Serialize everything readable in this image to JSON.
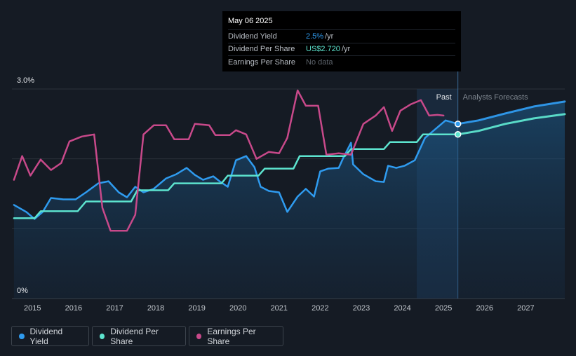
{
  "tooltip": {
    "date": "May 06 2025",
    "rows": [
      {
        "label": "Dividend Yield",
        "value": "2.5%",
        "unit": "/yr"
      },
      {
        "label": "Dividend Per Share",
        "value": "US$2.720",
        "unit": "/yr"
      },
      {
        "label": "Earnings Per Share",
        "value": "No data",
        "unit": ""
      }
    ]
  },
  "chart_data": {
    "type": "line",
    "y_axis_labels": [
      "3.0%",
      "0%"
    ],
    "ylim_percent": [
      0,
      3.0
    ],
    "x_tick_labels": [
      "2015",
      "2016",
      "2017",
      "2018",
      "2019",
      "2020",
      "2021",
      "2022",
      "2023",
      "2024",
      "2025",
      "2026",
      "2027"
    ],
    "xlim_year": [
      2014.5,
      2027.95
    ],
    "region_labels": {
      "past": "Past",
      "forecast": "Analysts Forecasts"
    },
    "forecast_start_year": 2025.35,
    "shaded_band_year": [
      2024.35,
      2025.35
    ],
    "series": [
      {
        "name": "Dividend Yield",
        "color": "#2f9bef",
        "filled": true,
        "points": [
          [
            2014.55,
            1.34
          ],
          [
            2014.85,
            1.24
          ],
          [
            2015.05,
            1.14
          ],
          [
            2015.25,
            1.24
          ],
          [
            2015.45,
            1.44
          ],
          [
            2015.75,
            1.42
          ],
          [
            2016.05,
            1.42
          ],
          [
            2016.3,
            1.52
          ],
          [
            2016.6,
            1.65
          ],
          [
            2016.85,
            1.68
          ],
          [
            2017.1,
            1.52
          ],
          [
            2017.3,
            1.45
          ],
          [
            2017.5,
            1.6
          ],
          [
            2017.7,
            1.52
          ],
          [
            2017.95,
            1.57
          ],
          [
            2018.25,
            1.72
          ],
          [
            2018.5,
            1.78
          ],
          [
            2018.75,
            1.87
          ],
          [
            2018.95,
            1.77
          ],
          [
            2019.15,
            1.7
          ],
          [
            2019.4,
            1.75
          ],
          [
            2019.55,
            1.68
          ],
          [
            2019.75,
            1.6
          ],
          [
            2019.95,
            1.98
          ],
          [
            2020.2,
            2.04
          ],
          [
            2020.4,
            1.88
          ],
          [
            2020.55,
            1.6
          ],
          [
            2020.75,
            1.54
          ],
          [
            2021.0,
            1.52
          ],
          [
            2021.2,
            1.24
          ],
          [
            2021.45,
            1.46
          ],
          [
            2021.65,
            1.57
          ],
          [
            2021.85,
            1.46
          ],
          [
            2022.0,
            1.82
          ],
          [
            2022.2,
            1.86
          ],
          [
            2022.45,
            1.87
          ],
          [
            2022.55,
            2.0
          ],
          [
            2022.75,
            2.23
          ],
          [
            2022.8,
            1.92
          ],
          [
            2023.05,
            1.78
          ],
          [
            2023.35,
            1.68
          ],
          [
            2023.55,
            1.67
          ],
          [
            2023.65,
            1.9
          ],
          [
            2023.85,
            1.87
          ],
          [
            2024.05,
            1.9
          ],
          [
            2024.3,
            1.98
          ],
          [
            2024.55,
            2.3
          ],
          [
            2024.85,
            2.45
          ],
          [
            2025.05,
            2.55
          ],
          [
            2025.35,
            2.5
          ]
        ]
      },
      {
        "name": "Dividend Per Share",
        "color": "#5de4cf",
        "filled": false,
        "points": [
          [
            2014.55,
            1.15
          ],
          [
            2015.05,
            1.15
          ],
          [
            2015.2,
            1.25
          ],
          [
            2016.1,
            1.25
          ],
          [
            2016.3,
            1.39
          ],
          [
            2017.4,
            1.39
          ],
          [
            2017.55,
            1.55
          ],
          [
            2018.3,
            1.55
          ],
          [
            2018.45,
            1.65
          ],
          [
            2019.6,
            1.65
          ],
          [
            2019.75,
            1.76
          ],
          [
            2020.5,
            1.76
          ],
          [
            2020.65,
            1.86
          ],
          [
            2021.35,
            1.86
          ],
          [
            2021.5,
            2.04
          ],
          [
            2022.6,
            2.04
          ],
          [
            2022.75,
            2.14
          ],
          [
            2023.55,
            2.14
          ],
          [
            2023.7,
            2.24
          ],
          [
            2024.35,
            2.24
          ],
          [
            2024.5,
            2.35
          ],
          [
            2025.35,
            2.35
          ]
        ]
      },
      {
        "name": "Earnings Per Share",
        "color": "#c8498a",
        "filled": false,
        "points": [
          [
            2014.55,
            1.7
          ],
          [
            2014.75,
            2.04
          ],
          [
            2014.95,
            1.76
          ],
          [
            2015.2,
            1.99
          ],
          [
            2015.45,
            1.84
          ],
          [
            2015.7,
            1.94
          ],
          [
            2015.9,
            2.25
          ],
          [
            2016.2,
            2.32
          ],
          [
            2016.5,
            2.35
          ],
          [
            2016.7,
            1.3
          ],
          [
            2016.9,
            0.97
          ],
          [
            2017.3,
            0.97
          ],
          [
            2017.5,
            1.2
          ],
          [
            2017.7,
            2.35
          ],
          [
            2017.95,
            2.48
          ],
          [
            2018.25,
            2.48
          ],
          [
            2018.45,
            2.28
          ],
          [
            2018.8,
            2.28
          ],
          [
            2018.95,
            2.5
          ],
          [
            2019.3,
            2.48
          ],
          [
            2019.45,
            2.34
          ],
          [
            2019.8,
            2.34
          ],
          [
            2019.95,
            2.41
          ],
          [
            2020.2,
            2.35
          ],
          [
            2020.45,
            2.0
          ],
          [
            2020.75,
            2.1
          ],
          [
            2021.0,
            2.08
          ],
          [
            2021.2,
            2.3
          ],
          [
            2021.45,
            2.98
          ],
          [
            2021.65,
            2.76
          ],
          [
            2021.95,
            2.76
          ],
          [
            2022.15,
            2.06
          ],
          [
            2022.45,
            2.08
          ],
          [
            2022.75,
            2.06
          ],
          [
            2023.05,
            2.5
          ],
          [
            2023.35,
            2.62
          ],
          [
            2023.55,
            2.74
          ],
          [
            2023.75,
            2.4
          ],
          [
            2023.95,
            2.69
          ],
          [
            2024.2,
            2.78
          ],
          [
            2024.45,
            2.84
          ],
          [
            2024.65,
            2.62
          ],
          [
            2024.85,
            2.63
          ],
          [
            2025.0,
            2.62
          ]
        ]
      },
      {
        "name": "Dividend Yield Forecast",
        "color": "#2f9bef",
        "filled": true,
        "points": [
          [
            2025.35,
            2.5
          ],
          [
            2025.85,
            2.55
          ],
          [
            2026.5,
            2.65
          ],
          [
            2027.2,
            2.75
          ],
          [
            2027.95,
            2.82
          ]
        ]
      },
      {
        "name": "Dividend Per Share Forecast",
        "color": "#5de4cf",
        "filled": false,
        "points": [
          [
            2025.35,
            2.35
          ],
          [
            2025.85,
            2.4
          ],
          [
            2026.5,
            2.5
          ],
          [
            2027.2,
            2.58
          ],
          [
            2027.95,
            2.64
          ]
        ]
      }
    ],
    "highlight_year": 2025.35
  },
  "legend": [
    {
      "label": "Dividend Yield",
      "color": "#2f9bef"
    },
    {
      "label": "Dividend Per Share",
      "color": "#5de4cf"
    },
    {
      "label": "Earnings Per Share",
      "color": "#c8498a"
    }
  ]
}
